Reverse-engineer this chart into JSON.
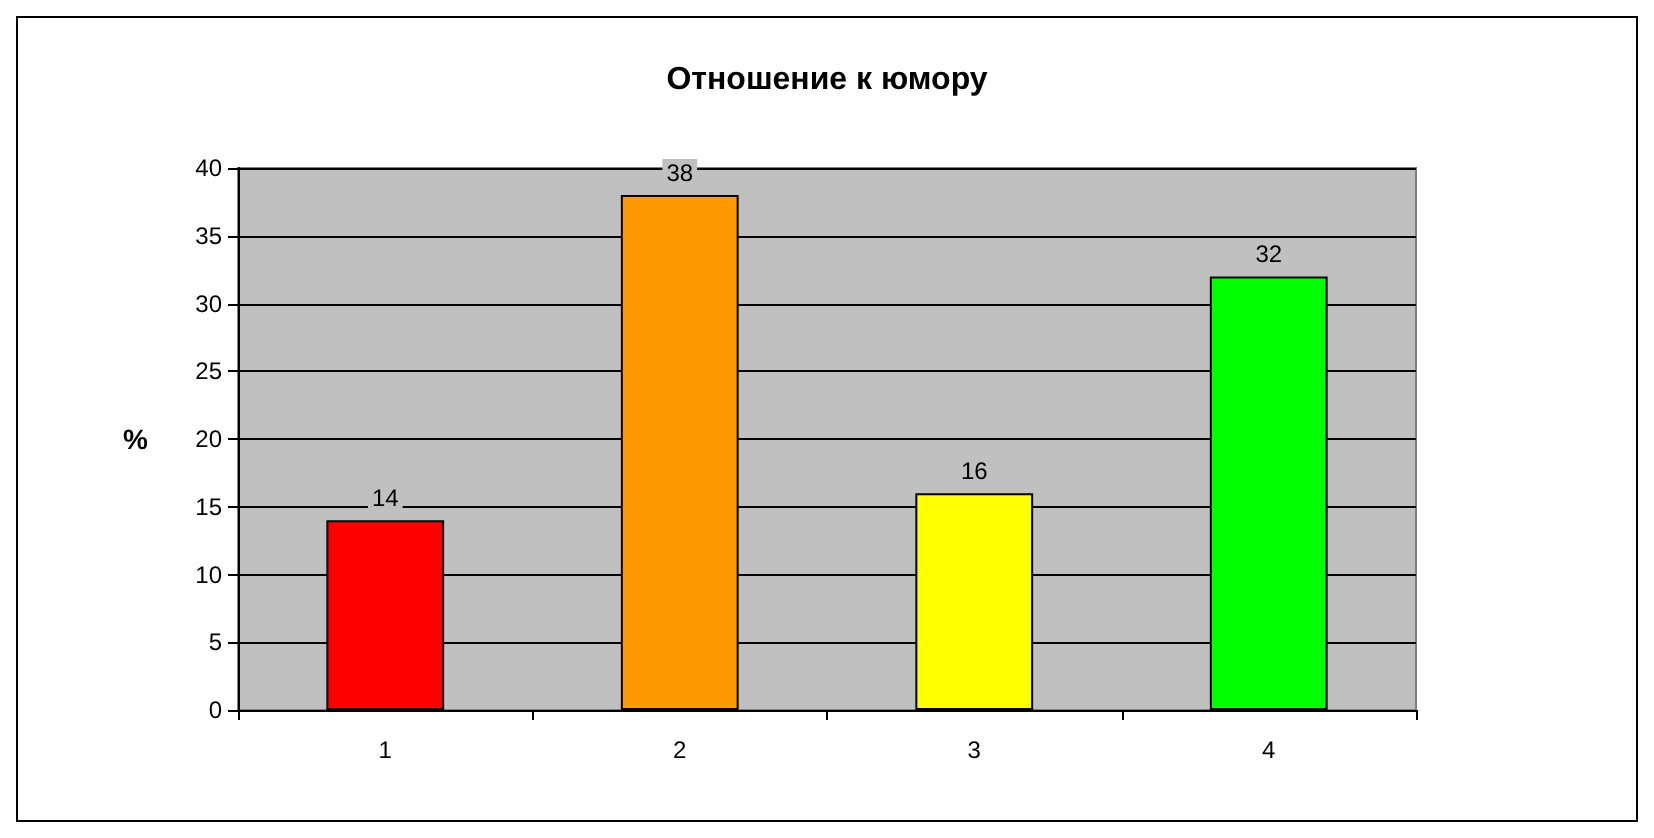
{
  "chart_data": {
    "type": "bar",
    "title": "Отношение к юмору",
    "ylabel": "%",
    "categories": [
      "1",
      "2",
      "3",
      "4"
    ],
    "values": [
      14,
      38,
      16,
      32
    ],
    "colors": [
      "#ff0000",
      "#ff9900",
      "#ffff00",
      "#00ff00"
    ],
    "ylim": [
      0,
      40
    ],
    "yticks": [
      0,
      5,
      10,
      15,
      20,
      25,
      30,
      35,
      40
    ],
    "grid": "y",
    "data_labels": true
  }
}
